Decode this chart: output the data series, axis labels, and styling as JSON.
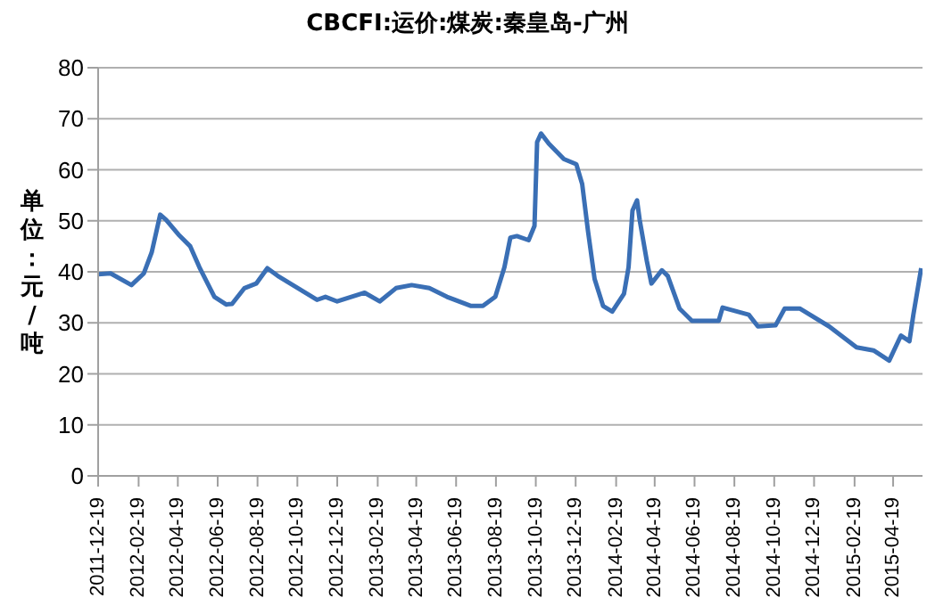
{
  "chart_data": {
    "type": "line",
    "title": "CBCFI:运价:煤炭:秦皇岛-广州",
    "ylabel": "单位：元/吨",
    "x": [
      "2011-12-19",
      "2012-01-07",
      "2012-02-08",
      "2012-02-27",
      "2012-03-10",
      "2012-03-23",
      "2012-04-01",
      "2012-04-20",
      "2012-05-08",
      "2012-05-22",
      "2012-06-14",
      "2012-07-02",
      "2012-07-11",
      "2012-07-30",
      "2012-08-17",
      "2012-09-03",
      "2012-09-19",
      "2012-10-12",
      "2012-11-18",
      "2012-12-01",
      "2012-12-19",
      "2013-01-30",
      "2013-02-22",
      "2013-03-19",
      "2013-04-12",
      "2013-05-09",
      "2013-06-05",
      "2013-07-12",
      "2013-07-30",
      "2013-08-18",
      "2013-09-01",
      "2013-09-10",
      "2013-09-20",
      "2013-10-08",
      "2013-10-17",
      "2013-10-21",
      "2013-10-27",
      "2013-11-08",
      "2013-12-01",
      "2013-12-20",
      "2013-12-29",
      "2014-01-07",
      "2014-01-17",
      "2014-01-30",
      "2014-02-13",
      "2014-03-03",
      "2014-03-10",
      "2014-03-16",
      "2014-03-23",
      "2014-03-27",
      "2014-04-07",
      "2014-04-14",
      "2014-04-30",
      "2014-05-09",
      "2014-05-27",
      "2014-06-15",
      "2014-07-26",
      "2014-08-01",
      "2014-09-10",
      "2014-09-24",
      "2014-10-21",
      "2014-11-04",
      "2014-11-27",
      "2015-01-11",
      "2015-02-22",
      "2015-03-20",
      "2015-04-13",
      "2015-05-01",
      "2015-05-14",
      "2015-05-20",
      "2015-06-01"
    ],
    "series": [
      {
        "color": "#3a6fb5",
        "values": [
          39.5,
          39.7,
          37.4,
          39.7,
          43.8,
          51.2,
          50.2,
          47.3,
          45,
          40.9,
          35.1,
          33.6,
          33.7,
          36.8,
          37.7,
          40.7,
          39.2,
          37.4,
          34.5,
          35.1,
          34.2,
          35.9,
          34.2,
          36.8,
          37.4,
          36.8,
          35.1,
          33.3,
          33.3,
          35.1,
          40.9,
          46.7,
          47,
          46.2,
          49,
          65.4,
          67.1,
          65.1,
          62.1,
          61.1,
          57.2,
          47.9,
          38.6,
          33.3,
          32.2,
          35.7,
          40.9,
          52,
          54,
          50.2,
          42.1,
          37.7,
          40.3,
          39.2,
          32.8,
          30.4,
          30.4,
          33,
          31.6,
          29.3,
          29.5,
          32.8,
          32.8,
          29.3,
          25.2,
          24.6,
          22.6,
          27.5,
          26.4,
          31.6,
          40.7
        ]
      }
    ],
    "xlim": [
      "2011-12-19",
      "2015-06-03"
    ],
    "xticks": [
      "2011-12-19",
      "2012-02-19",
      "2012-04-19",
      "2012-06-19",
      "2012-08-19",
      "2012-10-19",
      "2012-12-19",
      "2013-02-19",
      "2013-04-19",
      "2013-06-19",
      "2013-08-19",
      "2013-10-19",
      "2013-12-19",
      "2014-02-19",
      "2014-04-19",
      "2014-06-19",
      "2014-08-19",
      "2014-10-19",
      "2014-12-19",
      "2015-02-19",
      "2015-04-19"
    ],
    "ylim": [
      0,
      80
    ],
    "yticks": [
      0,
      10,
      20,
      30,
      40,
      50,
      60,
      70,
      80
    ],
    "grid": "y",
    "legend": false
  }
}
